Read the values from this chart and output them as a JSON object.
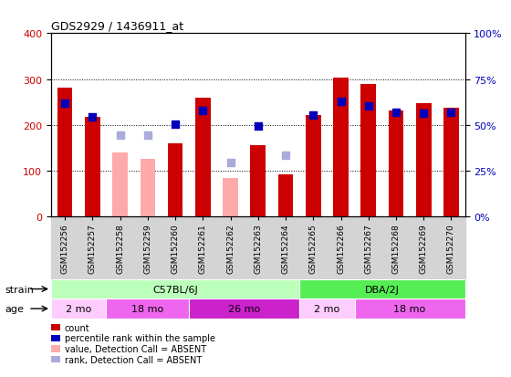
{
  "title": "GDS2929 / 1436911_at",
  "samples": [
    "GSM152256",
    "GSM152257",
    "GSM152258",
    "GSM152259",
    "GSM152260",
    "GSM152261",
    "GSM152262",
    "GSM152263",
    "GSM152264",
    "GSM152265",
    "GSM152266",
    "GSM152267",
    "GSM152268",
    "GSM152269",
    "GSM152270"
  ],
  "bar_values": [
    282,
    218,
    null,
    null,
    160,
    260,
    null,
    155,
    92,
    222,
    304,
    290,
    232,
    248,
    237
  ],
  "bar_absent_values": [
    null,
    null,
    140,
    127,
    null,
    null,
    85,
    null,
    null,
    null,
    null,
    null,
    null,
    null,
    null
  ],
  "bar_color_present": "#cc0000",
  "bar_color_absent": "#ffaaaa",
  "dot_values": [
    248,
    218,
    null,
    null,
    202,
    232,
    null,
    198,
    null,
    222,
    252,
    242,
    228,
    225,
    228
  ],
  "dot_absent_values": [
    null,
    null,
    178,
    178,
    null,
    null,
    118,
    null,
    135,
    null,
    null,
    null,
    null,
    null,
    null
  ],
  "dot_color_present": "#0000bb",
  "dot_color_absent": "#aaaadd",
  "ylim_left": [
    0,
    400
  ],
  "yticks_left": [
    0,
    100,
    200,
    300,
    400
  ],
  "ytick_labels_right": [
    "0%",
    "25%",
    "50%",
    "75%",
    "100%"
  ],
  "grid_lines": [
    100,
    200,
    300
  ],
  "strain_labels": [
    {
      "text": "C57BL/6J",
      "start": 0,
      "end": 9,
      "color": "#bbffbb"
    },
    {
      "text": "DBA/2J",
      "start": 9,
      "end": 15,
      "color": "#55ee55"
    }
  ],
  "age_labels": [
    {
      "text": "2 mo",
      "start": 0,
      "end": 2,
      "color": "#ffccff"
    },
    {
      "text": "18 mo",
      "start": 2,
      "end": 5,
      "color": "#ee66ee"
    },
    {
      "text": "26 mo",
      "start": 5,
      "end": 9,
      "color": "#cc22cc"
    },
    {
      "text": "2 mo",
      "start": 9,
      "end": 11,
      "color": "#ffccff"
    },
    {
      "text": "18 mo",
      "start": 11,
      "end": 15,
      "color": "#ee66ee"
    }
  ],
  "legend_items": [
    {
      "label": "count",
      "color": "#cc0000"
    },
    {
      "label": "percentile rank within the sample",
      "color": "#0000bb"
    },
    {
      "label": "value, Detection Call = ABSENT",
      "color": "#ffaaaa"
    },
    {
      "label": "rank, Detection Call = ABSENT",
      "color": "#aaaadd"
    }
  ],
  "bar_width": 0.55,
  "dot_size": 40,
  "background_color": "#ffffff",
  "tick_label_color_left": "#cc0000",
  "tick_label_color_right": "#0000bb"
}
